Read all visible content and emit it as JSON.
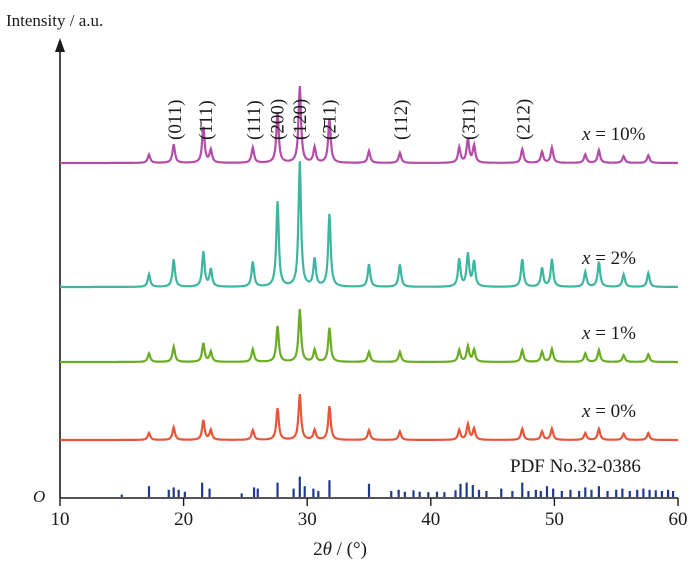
{
  "chart_data": {
    "type": "line",
    "ylabel": "Intensity / a.u.",
    "xlabel_parts": [
      "2",
      "θ",
      " / (°)"
    ],
    "y_origin_label": "O",
    "xlim": [
      10,
      60
    ],
    "xticks": [
      10,
      20,
      30,
      40,
      50,
      60
    ],
    "peaks": [
      17.2,
      19.2,
      21.6,
      22.2,
      25.6,
      27.6,
      29.4,
      30.6,
      31.8,
      35.0,
      37.5,
      42.3,
      43.0,
      43.5,
      47.4,
      49.0,
      49.8,
      52.5,
      53.6,
      55.6,
      57.6
    ],
    "series": [
      {
        "name": "x = 10%",
        "label_prefix": "x",
        "label_rest": " = 10%",
        "color": "#b44da8",
        "intensities": [
          0.1,
          0.22,
          0.42,
          0.15,
          0.18,
          0.58,
          0.9,
          0.18,
          0.52,
          0.14,
          0.12,
          0.18,
          0.28,
          0.2,
          0.16,
          0.13,
          0.18,
          0.1,
          0.15,
          0.08,
          0.09
        ]
      },
      {
        "name": "x = 2%",
        "label_prefix": "x",
        "label_rest": " = 2%",
        "color": "#3db6a0",
        "intensities": [
          0.1,
          0.22,
          0.28,
          0.14,
          0.2,
          0.68,
          1.0,
          0.22,
          0.58,
          0.18,
          0.18,
          0.22,
          0.26,
          0.2,
          0.22,
          0.15,
          0.22,
          0.12,
          0.2,
          0.1,
          0.11
        ]
      },
      {
        "name": "x = 1%",
        "label_prefix": "x",
        "label_rest": " = 1%",
        "color": "#6aac24",
        "intensities": [
          0.1,
          0.18,
          0.22,
          0.12,
          0.15,
          0.42,
          0.62,
          0.14,
          0.4,
          0.12,
          0.12,
          0.14,
          0.18,
          0.14,
          0.14,
          0.12,
          0.15,
          0.1,
          0.14,
          0.08,
          0.09
        ]
      },
      {
        "name": "x = 0%",
        "label_prefix": "x",
        "label_rest": " = 0%",
        "color": "#e8563a",
        "intensities": [
          0.1,
          0.18,
          0.28,
          0.14,
          0.14,
          0.45,
          0.65,
          0.14,
          0.48,
          0.14,
          0.12,
          0.14,
          0.22,
          0.16,
          0.16,
          0.12,
          0.16,
          0.1,
          0.16,
          0.09,
          0.1
        ]
      }
    ],
    "hkl_labels": [
      {
        "text": "(011)",
        "x": 19.3
      },
      {
        "text": "(1̄11)",
        "x": 21.8
      },
      {
        "text": "(111)",
        "x": 25.7
      },
      {
        "text": "(200)",
        "x": 27.6
      },
      {
        "text": "(120)",
        "x": 29.4
      },
      {
        "text": "(2̄11)",
        "x": 31.8
      },
      {
        "text": "(112)",
        "x": 37.6
      },
      {
        "text": "(3̄11)",
        "x": 43.1
      },
      {
        "text": "(212)",
        "x": 47.5
      }
    ],
    "reference": {
      "label": "PDF No.32-0386",
      "color": "#1f3a8c",
      "lines": [
        [
          15.0,
          0.1
        ],
        [
          17.2,
          0.45
        ],
        [
          18.8,
          0.3
        ],
        [
          19.2,
          0.4
        ],
        [
          19.6,
          0.3
        ],
        [
          20.1,
          0.22
        ],
        [
          21.5,
          0.6
        ],
        [
          22.1,
          0.35
        ],
        [
          24.7,
          0.15
        ],
        [
          25.7,
          0.4
        ],
        [
          26.0,
          0.35
        ],
        [
          27.6,
          0.6
        ],
        [
          28.9,
          0.35
        ],
        [
          29.4,
          0.85
        ],
        [
          29.8,
          0.45
        ],
        [
          30.5,
          0.35
        ],
        [
          30.9,
          0.25
        ],
        [
          31.8,
          0.7
        ],
        [
          35.0,
          0.55
        ],
        [
          36.8,
          0.25
        ],
        [
          37.4,
          0.3
        ],
        [
          37.9,
          0.22
        ],
        [
          38.6,
          0.28
        ],
        [
          39.1,
          0.22
        ],
        [
          39.8,
          0.2
        ],
        [
          40.5,
          0.22
        ],
        [
          41.1,
          0.2
        ],
        [
          42.0,
          0.28
        ],
        [
          42.4,
          0.55
        ],
        [
          42.9,
          0.6
        ],
        [
          43.4,
          0.5
        ],
        [
          43.9,
          0.3
        ],
        [
          44.5,
          0.25
        ],
        [
          45.7,
          0.35
        ],
        [
          46.6,
          0.25
        ],
        [
          47.4,
          0.6
        ],
        [
          47.9,
          0.25
        ],
        [
          48.5,
          0.3
        ],
        [
          48.9,
          0.25
        ],
        [
          49.4,
          0.45
        ],
        [
          49.9,
          0.35
        ],
        [
          50.6,
          0.25
        ],
        [
          51.3,
          0.3
        ],
        [
          52.0,
          0.25
        ],
        [
          52.5,
          0.4
        ],
        [
          53.0,
          0.3
        ],
        [
          53.6,
          0.45
        ],
        [
          54.3,
          0.25
        ],
        [
          55.0,
          0.3
        ],
        [
          55.5,
          0.35
        ],
        [
          56.1,
          0.25
        ],
        [
          56.7,
          0.3
        ],
        [
          57.2,
          0.35
        ],
        [
          57.7,
          0.3
        ],
        [
          58.2,
          0.28
        ],
        [
          58.7,
          0.25
        ],
        [
          59.2,
          0.3
        ],
        [
          59.6,
          0.25
        ]
      ]
    }
  }
}
